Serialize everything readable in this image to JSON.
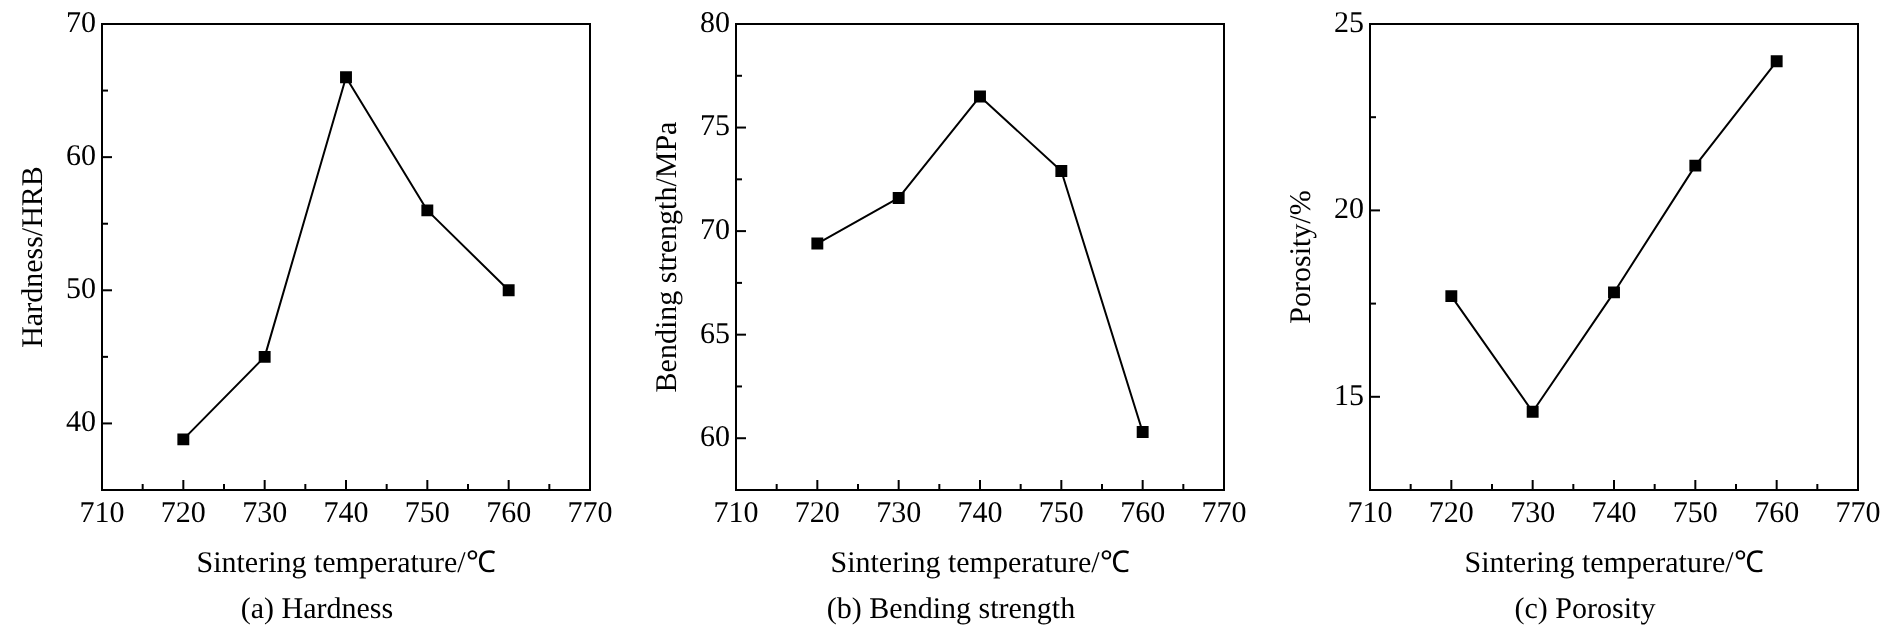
{
  "chart_data": [
    {
      "type": "line",
      "xlabel": "Sintering temperature/℃",
      "ylabel": "Hardness/HRB",
      "annotations": [
        "(a) Hardness"
      ],
      "x": [
        720,
        730,
        740,
        750,
        760
      ],
      "series": [
        {
          "color": "#000000",
          "values": [
            38.8,
            45,
            66,
            56,
            50
          ]
        }
      ],
      "xlim": [
        710,
        770
      ],
      "xticks": [
        710,
        {
          "value": 715,
          "label": null
        },
        720,
        {
          "value": 725,
          "label": null
        },
        730,
        {
          "value": 735,
          "label": null
        },
        740,
        {
          "value": 745,
          "label": null
        },
        750,
        {
          "value": 755,
          "label": null
        },
        760,
        {
          "value": 765,
          "label": null
        },
        770
      ],
      "ylim": [
        35,
        70
      ],
      "yticks": [
        40,
        {
          "value": 45,
          "label": null
        },
        50,
        {
          "value": 55,
          "label": null
        },
        60,
        {
          "value": 65,
          "label": null
        },
        70
      ],
      "grid": false,
      "legend": false,
      "marker": "square",
      "line_style": "solid"
    },
    {
      "type": "line",
      "xlabel": "Sintering temperature/℃",
      "ylabel": "Bending strength/MPa",
      "annotations": [
        "(b) Bending strength"
      ],
      "x": [
        720,
        730,
        740,
        750,
        760
      ],
      "series": [
        {
          "color": "#000000",
          "values": [
            69.4,
            71.6,
            76.5,
            72.9,
            60.3
          ]
        }
      ],
      "xlim": [
        710,
        770
      ],
      "xticks": [
        710,
        {
          "value": 715,
          "label": null
        },
        720,
        {
          "value": 725,
          "label": null
        },
        730,
        {
          "value": 735,
          "label": null
        },
        740,
        {
          "value": 745,
          "label": null
        },
        750,
        {
          "value": 755,
          "label": null
        },
        760,
        {
          "value": 765,
          "label": null
        },
        770
      ],
      "ylim": [
        57.5,
        80
      ],
      "yticks": [
        60,
        {
          "value": 62.5,
          "label": null
        },
        65,
        {
          "value": 67.5,
          "label": null
        },
        70,
        {
          "value": 72.5,
          "label": null
        },
        75,
        {
          "value": 77.5,
          "label": null
        },
        80
      ],
      "grid": false,
      "legend": false,
      "marker": "square",
      "line_style": "solid"
    },
    {
      "type": "line",
      "xlabel": "Sintering temperature/℃",
      "ylabel": "Porosity/%",
      "annotations": [
        "(c) Porosity"
      ],
      "x": [
        720,
        730,
        740,
        750,
        760
      ],
      "series": [
        {
          "color": "#000000",
          "values": [
            17.7,
            14.6,
            17.8,
            21.2,
            24.0
          ]
        }
      ],
      "xlim": [
        710,
        770
      ],
      "xticks": [
        710,
        {
          "value": 715,
          "label": null
        },
        720,
        {
          "value": 725,
          "label": null
        },
        730,
        {
          "value": 735,
          "label": null
        },
        740,
        {
          "value": 745,
          "label": null
        },
        750,
        {
          "value": 755,
          "label": null
        },
        760,
        {
          "value": 765,
          "label": null
        },
        770
      ],
      "ylim": [
        12.5,
        25
      ],
      "yticks": [
        15,
        {
          "value": 17.5,
          "label": null
        },
        20,
        {
          "value": 22.5,
          "label": null
        },
        25
      ],
      "grid": false,
      "legend": false,
      "marker": "square",
      "line_style": "solid"
    }
  ]
}
